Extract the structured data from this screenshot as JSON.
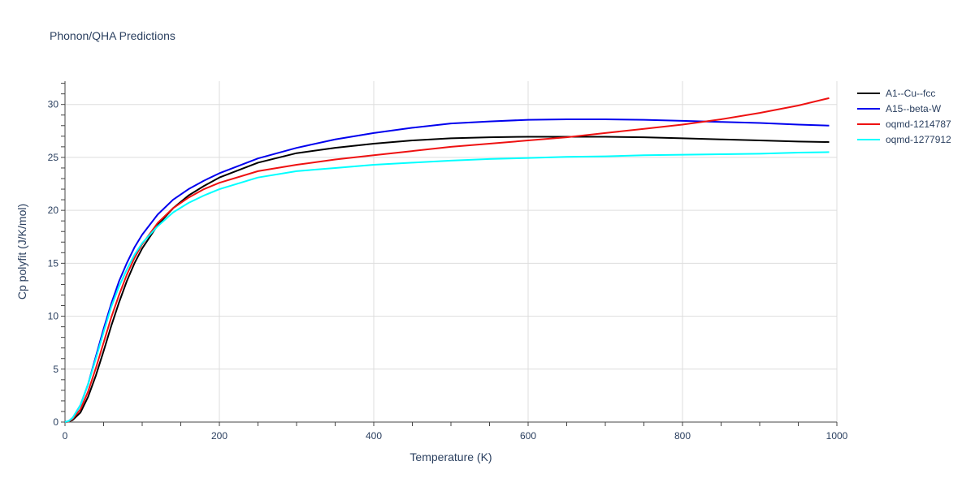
{
  "chart_data": {
    "type": "line",
    "title": "Phonon/QHA Predictions",
    "xlabel": "Temperature (K)",
    "ylabel": "Cp polyfit (J/K/mol)",
    "xlim": [
      0,
      1000
    ],
    "ylim": [
      0,
      32.2
    ],
    "xticks": [
      0,
      200,
      400,
      600,
      800,
      1000
    ],
    "yticks": [
      0,
      5,
      10,
      15,
      20,
      25,
      30
    ],
    "grid": true,
    "legend_position": "right",
    "series": [
      {
        "name": "A1--Cu--fcc",
        "color": "#000000",
        "x": [
          0,
          5,
          10,
          20,
          30,
          40,
          50,
          60,
          70,
          80,
          90,
          100,
          120,
          140,
          160,
          180,
          200,
          250,
          300,
          350,
          400,
          450,
          500,
          550,
          600,
          650,
          700,
          750,
          800,
          850,
          900,
          950,
          990
        ],
        "y": [
          0,
          0.05,
          0.2,
          0.9,
          2.4,
          4.4,
          6.7,
          9.1,
          11.3,
          13.3,
          15.0,
          16.4,
          18.6,
          20.2,
          21.4,
          22.3,
          23.1,
          24.5,
          25.4,
          25.9,
          26.3,
          26.6,
          26.8,
          26.9,
          26.95,
          26.95,
          26.95,
          26.9,
          26.8,
          26.7,
          26.6,
          26.5,
          26.45
        ]
      },
      {
        "name": "A15--beta-W",
        "color": "#0000ee",
        "x": [
          0,
          5,
          10,
          20,
          30,
          40,
          50,
          60,
          70,
          80,
          90,
          100,
          120,
          140,
          160,
          180,
          200,
          250,
          300,
          350,
          400,
          450,
          500,
          550,
          600,
          650,
          700,
          750,
          800,
          850,
          900,
          950,
          990
        ],
        "y": [
          0,
          0.1,
          0.4,
          1.6,
          3.6,
          6.2,
          8.8,
          11.2,
          13.3,
          15.0,
          16.5,
          17.7,
          19.6,
          21.0,
          22.0,
          22.8,
          23.5,
          24.9,
          25.9,
          26.7,
          27.3,
          27.8,
          28.2,
          28.4,
          28.55,
          28.6,
          28.6,
          28.55,
          28.45,
          28.35,
          28.25,
          28.1,
          28.0
        ]
      },
      {
        "name": "oqmd-1214787",
        "color": "#ee1111",
        "x": [
          0,
          5,
          10,
          20,
          30,
          40,
          50,
          60,
          70,
          80,
          90,
          100,
          120,
          140,
          160,
          180,
          200,
          250,
          300,
          350,
          400,
          450,
          500,
          550,
          600,
          650,
          700,
          750,
          800,
          850,
          900,
          950,
          990
        ],
        "y": [
          0,
          0.05,
          0.3,
          1.2,
          2.9,
          5.1,
          7.5,
          9.9,
          12.0,
          13.9,
          15.5,
          16.8,
          18.8,
          20.2,
          21.2,
          22.0,
          22.6,
          23.7,
          24.3,
          24.8,
          25.2,
          25.6,
          26.0,
          26.3,
          26.6,
          26.9,
          27.3,
          27.7,
          28.1,
          28.6,
          29.2,
          29.9,
          30.6
        ]
      },
      {
        "name": "oqmd-1277912",
        "color": "#00ffff",
        "x": [
          0,
          5,
          10,
          20,
          30,
          40,
          50,
          60,
          70,
          80,
          90,
          100,
          120,
          140,
          160,
          180,
          200,
          250,
          300,
          350,
          400,
          450,
          500,
          550,
          600,
          650,
          700,
          750,
          800,
          850,
          900,
          950,
          990
        ],
        "y": [
          0,
          0.1,
          0.4,
          1.6,
          3.6,
          6.0,
          8.5,
          10.9,
          12.8,
          14.4,
          15.8,
          16.9,
          18.5,
          19.8,
          20.7,
          21.4,
          22.0,
          23.1,
          23.7,
          24.0,
          24.3,
          24.5,
          24.7,
          24.85,
          24.95,
          25.05,
          25.1,
          25.2,
          25.25,
          25.3,
          25.35,
          25.45,
          25.5
        ]
      }
    ]
  }
}
